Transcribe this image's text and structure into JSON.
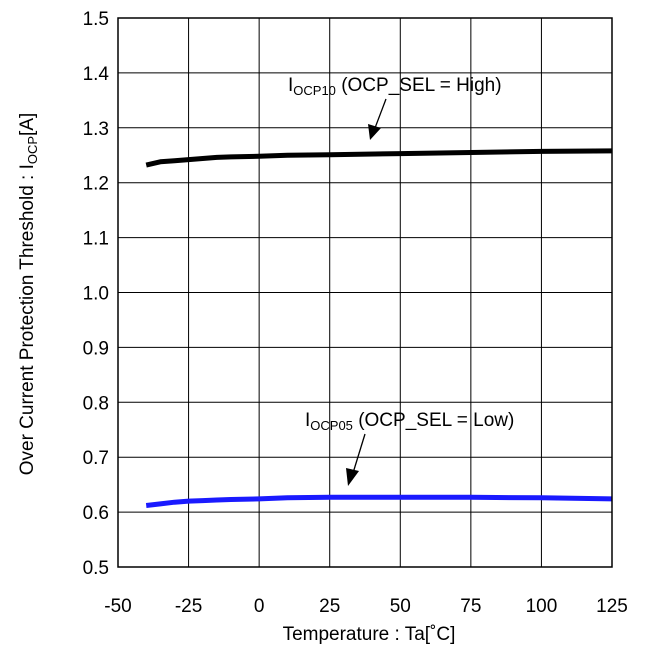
{
  "chart_data": {
    "type": "line",
    "title": "",
    "xlabel": "Temperature : Ta[˚C]",
    "ylabel": {
      "prefix": "Over Current Protection Threshold : I",
      "sub": "OCP",
      "suffix": "[A]"
    },
    "xlim": [
      -50,
      125
    ],
    "ylim": [
      0.5,
      1.5
    ],
    "x_ticks": [
      "-50",
      "-25",
      "0",
      "25",
      "50",
      "75",
      "100",
      "125"
    ],
    "y_ticks": [
      "0.5",
      "0.6",
      "0.7",
      "0.8",
      "0.9",
      "1.0",
      "1.1",
      "1.2",
      "1.3",
      "1.4",
      "1.5"
    ],
    "grid": true,
    "series": [
      {
        "name": "I_OCP10",
        "label": {
          "main": "I",
          "sub": "OCP10",
          "rest": " (OCP_SEL = High)"
        },
        "color": "#000000",
        "x": [
          -40,
          -35,
          -30,
          -25,
          -20,
          -15,
          -10,
          0,
          10,
          25,
          50,
          75,
          100,
          125
        ],
        "y": [
          1.232,
          1.238,
          1.24,
          1.242,
          1.244,
          1.246,
          1.247,
          1.248,
          1.25,
          1.251,
          1.253,
          1.255,
          1.257,
          1.258
        ]
      },
      {
        "name": "I_OCP05",
        "label": {
          "main": "I",
          "sub": "OCP05",
          "rest": " (OCP_SEL = Low)"
        },
        "color": "#1a1aff",
        "x": [
          -40,
          -35,
          -30,
          -25,
          -20,
          -15,
          -10,
          0,
          10,
          25,
          50,
          75,
          100,
          125
        ],
        "y": [
          0.612,
          0.615,
          0.618,
          0.62,
          0.621,
          0.622,
          0.623,
          0.624,
          0.626,
          0.627,
          0.627,
          0.627,
          0.626,
          0.624
        ]
      }
    ]
  }
}
